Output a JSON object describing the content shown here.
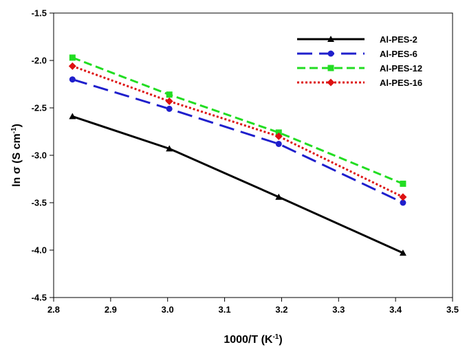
{
  "chart_data": {
    "type": "line",
    "xlabel_main": "1000/T (K",
    "xlabel_sup": "-1",
    "xlabel_close": ")",
    "ylabel_main": "ln σ (S cm",
    "ylabel_sup": "-1",
    "ylabel_close": ")",
    "xlim": [
      2.8,
      3.5
    ],
    "ylim": [
      -4.5,
      -1.5
    ],
    "xticks": [
      "2.8",
      "2.9",
      "3.0",
      "3.1",
      "3.2",
      "3.3",
      "3.4",
      "3.5"
    ],
    "yticks": [
      "-1.5",
      "-2.0",
      "-2.5",
      "-3.0",
      "-3.5",
      "-4.0",
      "-4.5"
    ],
    "grid": false,
    "legend_position": "top-right",
    "x": [
      2.833,
      3.003,
      3.195,
      3.413
    ],
    "series": [
      {
        "name": "Al-PES-2",
        "values": [
          -2.59,
          -2.93,
          -3.44,
          -4.03
        ],
        "color": "#000000",
        "marker": "triangle",
        "dash": "solid"
      },
      {
        "name": "Al-PES-6",
        "values": [
          -2.2,
          -2.51,
          -2.88,
          -3.5
        ],
        "color": "#1f1fcc",
        "marker": "circle",
        "dash": "long-dash"
      },
      {
        "name": "Al-PES-12",
        "values": [
          -1.97,
          -2.36,
          -2.76,
          -3.3
        ],
        "color": "#22dd22",
        "marker": "square",
        "dash": "short-dash"
      },
      {
        "name": "Al-PES-16",
        "values": [
          -2.06,
          -2.43,
          -2.8,
          -3.44
        ],
        "color": "#dd1111",
        "marker": "diamond",
        "dash": "dotted"
      }
    ]
  }
}
